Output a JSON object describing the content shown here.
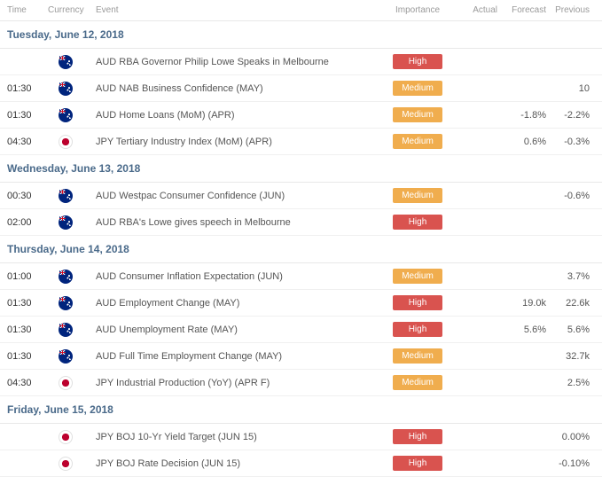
{
  "headers": {
    "time": "Time",
    "currency": "Currency",
    "event": "Event",
    "importance": "Importance",
    "actual": "Actual",
    "forecast": "Forecast",
    "previous": "Previous"
  },
  "badges": {
    "high": "High",
    "medium": "Medium"
  },
  "colors": {
    "badge_high": "#d9534f",
    "badge_medium": "#f0ad4e",
    "day_header_text": "#4a6a8a",
    "header_text": "#9a9a9a",
    "row_text": "#555555",
    "border": "#e8e8e8"
  },
  "days": [
    {
      "label": "Tuesday, June 12, 2018",
      "events": [
        {
          "time": "",
          "flag": "aud",
          "event": "AUD RBA Governor Philip Lowe Speaks in Melbourne",
          "importance": "high",
          "actual": "",
          "forecast": "",
          "previous": ""
        },
        {
          "time": "01:30",
          "flag": "aud",
          "event": "AUD NAB Business Confidence (MAY)",
          "importance": "medium",
          "actual": "",
          "forecast": "",
          "previous": "10"
        },
        {
          "time": "01:30",
          "flag": "aud",
          "event": "AUD Home Loans (MoM) (APR)",
          "importance": "medium",
          "actual": "",
          "forecast": "-1.8%",
          "previous": "-2.2%"
        },
        {
          "time": "04:30",
          "flag": "jpy",
          "event": "JPY Tertiary Industry Index (MoM) (APR)",
          "importance": "medium",
          "actual": "",
          "forecast": "0.6%",
          "previous": "-0.3%"
        }
      ]
    },
    {
      "label": "Wednesday, June 13, 2018",
      "events": [
        {
          "time": "00:30",
          "flag": "aud",
          "event": "AUD Westpac Consumer Confidence (JUN)",
          "importance": "medium",
          "actual": "",
          "forecast": "",
          "previous": "-0.6%"
        },
        {
          "time": "02:00",
          "flag": "aud",
          "event": "AUD RBA's Lowe gives speech in Melbourne",
          "importance": "high",
          "actual": "",
          "forecast": "",
          "previous": ""
        }
      ]
    },
    {
      "label": "Thursday, June 14, 2018",
      "events": [
        {
          "time": "01:00",
          "flag": "aud",
          "event": "AUD Consumer Inflation Expectation (JUN)",
          "importance": "medium",
          "actual": "",
          "forecast": "",
          "previous": "3.7%"
        },
        {
          "time": "01:30",
          "flag": "aud",
          "event": "AUD Employment Change (MAY)",
          "importance": "high",
          "actual": "",
          "forecast": "19.0k",
          "previous": "22.6k"
        },
        {
          "time": "01:30",
          "flag": "aud",
          "event": "AUD Unemployment Rate (MAY)",
          "importance": "high",
          "actual": "",
          "forecast": "5.6%",
          "previous": "5.6%"
        },
        {
          "time": "01:30",
          "flag": "aud",
          "event": "AUD Full Time Employment Change (MAY)",
          "importance": "medium",
          "actual": "",
          "forecast": "",
          "previous": "32.7k"
        },
        {
          "time": "04:30",
          "flag": "jpy",
          "event": "JPY Industrial Production (YoY) (APR F)",
          "importance": "medium",
          "actual": "",
          "forecast": "",
          "previous": "2.5%"
        }
      ]
    },
    {
      "label": "Friday, June 15, 2018",
      "events": [
        {
          "time": "",
          "flag": "jpy",
          "event": "JPY BOJ 10-Yr Yield Target (JUN 15)",
          "importance": "high",
          "actual": "",
          "forecast": "",
          "previous": "0.00%"
        },
        {
          "time": "",
          "flag": "jpy",
          "event": "JPY BOJ Rate Decision (JUN 15)",
          "importance": "high",
          "actual": "",
          "forecast": "",
          "previous": "-0.10%"
        }
      ]
    }
  ]
}
